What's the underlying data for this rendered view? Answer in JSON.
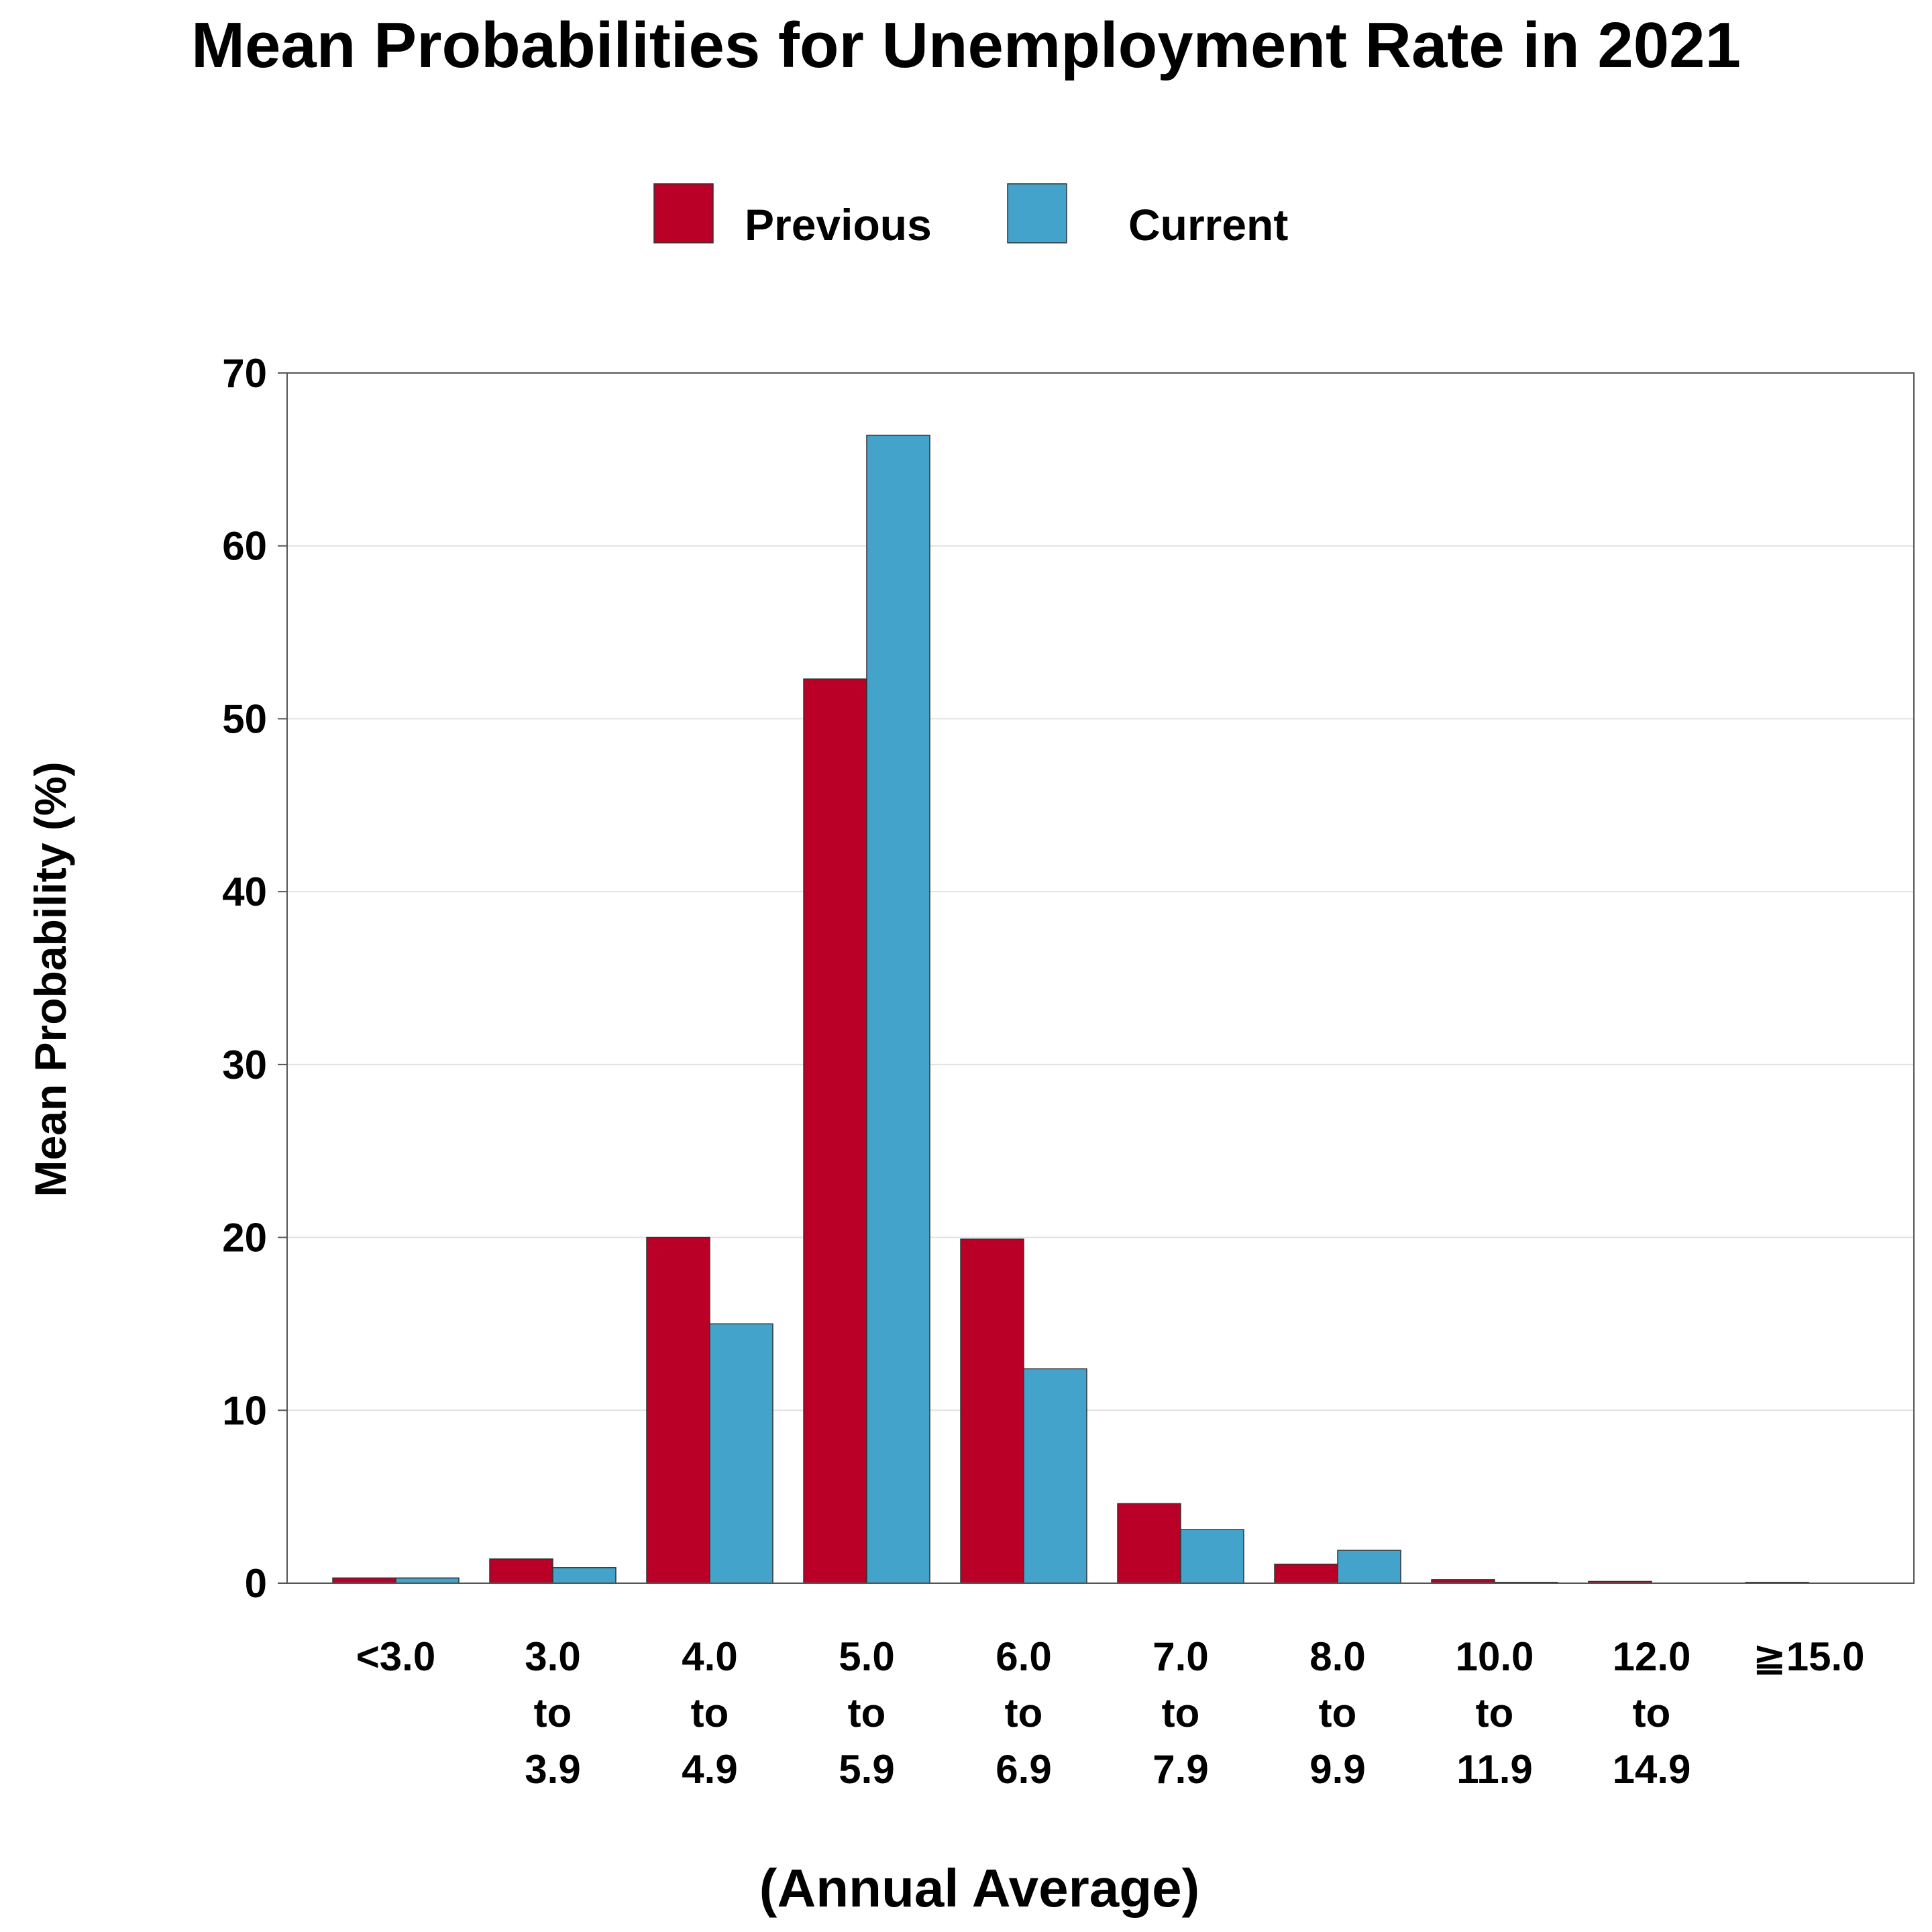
{
  "chart_data": {
    "type": "bar",
    "title": "Mean Probabilities for Unemployment Rate in 2021",
    "xlabel": "(Annual Average)",
    "ylabel": "Mean Probability (%)",
    "ylim": [
      0,
      70
    ],
    "yticks": [
      0,
      10,
      20,
      30,
      40,
      50,
      60,
      70
    ],
    "grid": true,
    "legend_position": "top-center",
    "categories": [
      [
        "<3.0"
      ],
      [
        "3.0",
        "to",
        "3.9"
      ],
      [
        "4.0",
        "to",
        "4.9"
      ],
      [
        "5.0",
        "to",
        "5.9"
      ],
      [
        "6.0",
        "to",
        "6.9"
      ],
      [
        "7.0",
        "to",
        "7.9"
      ],
      [
        "8.0",
        "to",
        "9.9"
      ],
      [
        "10.0",
        "to",
        "11.9"
      ],
      [
        "12.0",
        "to",
        "14.9"
      ],
      [
        "≧15.0"
      ]
    ],
    "series": [
      {
        "name": "Previous",
        "color": "#BA0026",
        "values": [
          0.3,
          1.4,
          20.0,
          52.3,
          19.9,
          4.6,
          1.1,
          0.2,
          0.1,
          0.05
        ]
      },
      {
        "name": "Current",
        "color": "#44A3CB",
        "values": [
          0.3,
          0.9,
          15.0,
          66.4,
          12.4,
          3.1,
          1.9,
          0.05,
          0.0,
          0.0
        ]
      }
    ]
  }
}
